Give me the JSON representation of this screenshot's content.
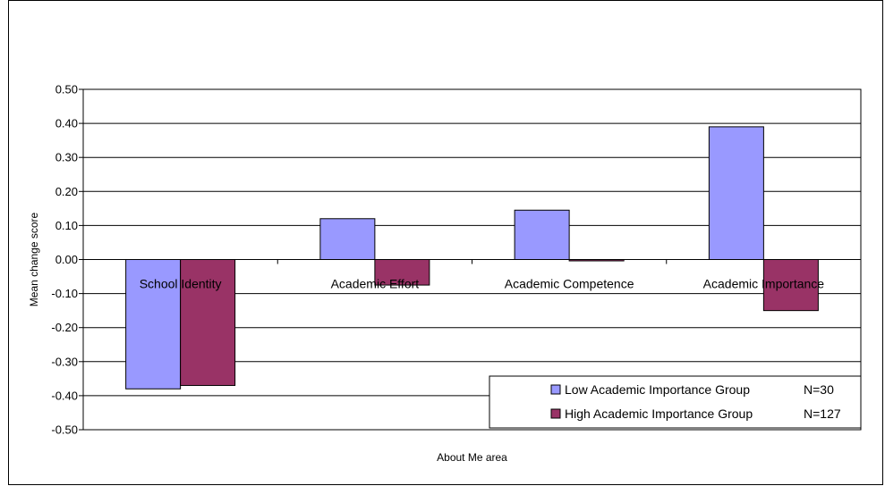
{
  "chart_data": {
    "type": "bar",
    "categories": [
      "School Identity",
      "Academic Effort",
      "Academic Competence",
      "Academic Importance"
    ],
    "series": [
      {
        "name": "Low Academic Importance Group",
        "note": "N=30",
        "color": "#9999ff",
        "values": [
          -0.38,
          0.12,
          0.145,
          0.39
        ]
      },
      {
        "name": "High Academic Importance Group",
        "note": "N=127",
        "color": "#993366",
        "values": [
          -0.37,
          -0.075,
          -0.003,
          -0.15
        ]
      }
    ],
    "xlabel": "About Me area",
    "ylabel": "Mean change score",
    "ylim": [
      -0.5,
      0.5
    ],
    "ytick_step": 0.1,
    "yticks": [
      "0.50",
      "0.40",
      "0.30",
      "0.20",
      "0.10",
      "0.00",
      "-0.10",
      "-0.20",
      "-0.30",
      "-0.40",
      "-0.50"
    ],
    "grid": true,
    "legend_position": "bottom-right"
  }
}
